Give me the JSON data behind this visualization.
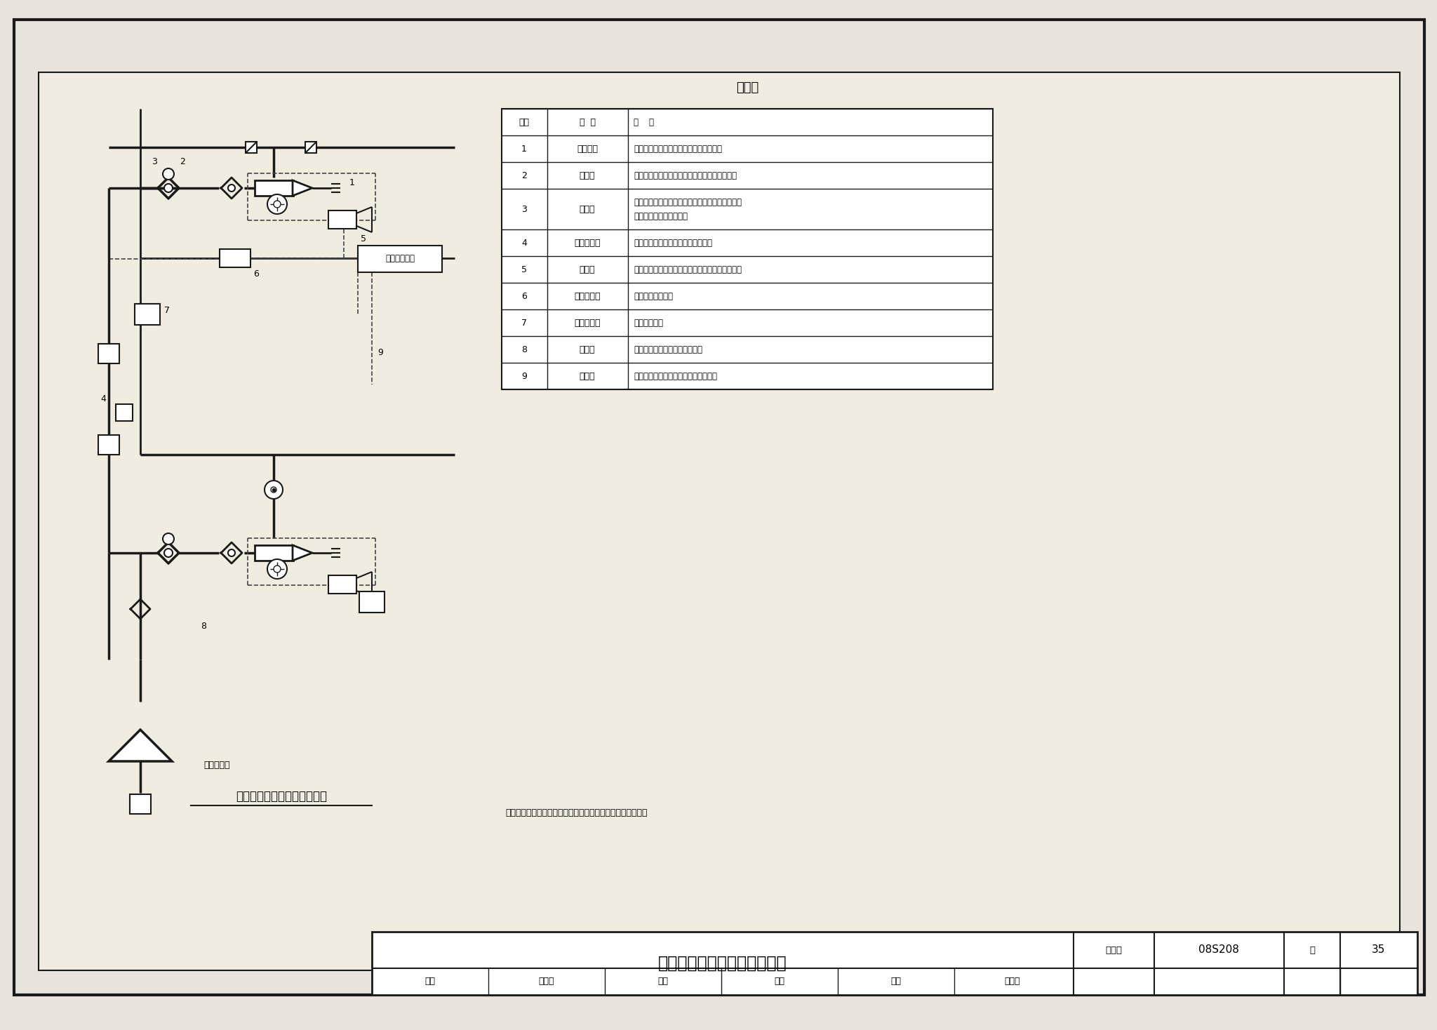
{
  "bg_color": "#e8e4dc",
  "inner_bg": "#f0ece0",
  "white": "#ffffff",
  "line_color": "#1a1a1a",
  "table_title": "名称表",
  "table_headers": [
    "编号",
    "名  称",
    "用    途"
  ],
  "table_rows": [
    [
      "1",
      "消防水炮",
      "将高压水喷向着火点灭火或用于设备冷却"
    ],
    [
      "2",
      "电动阀",
      "用于远控及自动控制时，开启供水管，平时常闭"
    ],
    [
      "3",
      "信号阀",
      "用于关闭管道检修电动阀或消防炮，平时常开，有\n开闭信号传至消防值班室"
    ],
    [
      "4",
      "蝶阀或闸阀",
      "检修阀门，平时常开，可采用信号阀"
    ],
    [
      "5",
      "摄像机",
      "将火灾图像传至消防控制中心，分析是否发生火灾"
    ],
    [
      "6",
      "现场控制器",
      "对消防炮就地控制"
    ],
    [
      "7",
      "手动操作盘",
      "现场手动操作"
    ],
    [
      "8",
      "供水管",
      "接至供水水源，供消防炮高压水"
    ],
    [
      "9",
      "控制线",
      "控制水炮阀门动作及传输摄像机等信号"
    ]
  ],
  "footer_title": "数字图像消防水炮系统示意图",
  "footer_collection": "图集号",
  "footer_collection_val": "08S208",
  "footer_page_label": "页",
  "footer_page_val": "35",
  "footer_row2_labels": [
    "审核",
    "戚晓专",
    "校对",
    "刘芳",
    "设计",
    "王世杰"
  ],
  "note_text": "注：本图按萃联（中国）消防设备制造有限公司的资料编制．",
  "diagram_caption": "数字图像消防水炮系统示意图"
}
